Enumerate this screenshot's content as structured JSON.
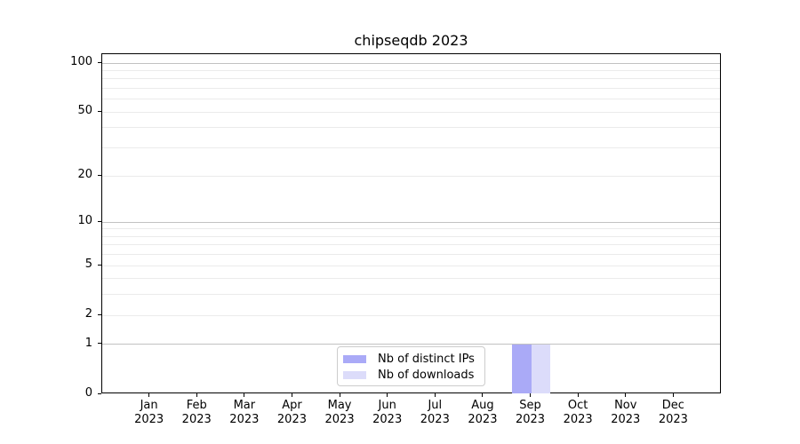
{
  "chart_data": {
    "type": "bar",
    "title": "chipseqdb 2023",
    "categories": [
      "Jan",
      "Feb",
      "Mar",
      "Apr",
      "May",
      "Jun",
      "Jul",
      "Aug",
      "Sep",
      "Oct",
      "Nov",
      "Dec"
    ],
    "category_year": "2023",
    "series": [
      {
        "name": "Nb of distinct IPs",
        "color": "#aaaaf7",
        "values": [
          0,
          0,
          0,
          0,
          0,
          0,
          0,
          0,
          1,
          0,
          0,
          0
        ]
      },
      {
        "name": "Nb of downloads",
        "color": "#dcdcfa",
        "values": [
          0,
          0,
          0,
          0,
          0,
          0,
          0,
          0,
          1,
          0,
          0,
          0
        ]
      }
    ],
    "y_scale": "log1p",
    "y_ticks": [
      0,
      1,
      2,
      5,
      10,
      20,
      50,
      100
    ],
    "y_minor_gridlines": [
      2,
      3,
      4,
      5,
      6,
      7,
      8,
      9,
      20,
      30,
      40,
      50,
      60,
      70,
      80,
      90
    ],
    "y_major_gridlines": [
      1,
      10,
      100
    ],
    "ylim": [
      0,
      113
    ],
    "grid": "both",
    "legend_position": "lower-center-inside",
    "colors": {
      "major_grid": "#c2c2c2",
      "minor_grid": "#ebebeb",
      "spine": "#000000",
      "text": "#000000"
    }
  }
}
